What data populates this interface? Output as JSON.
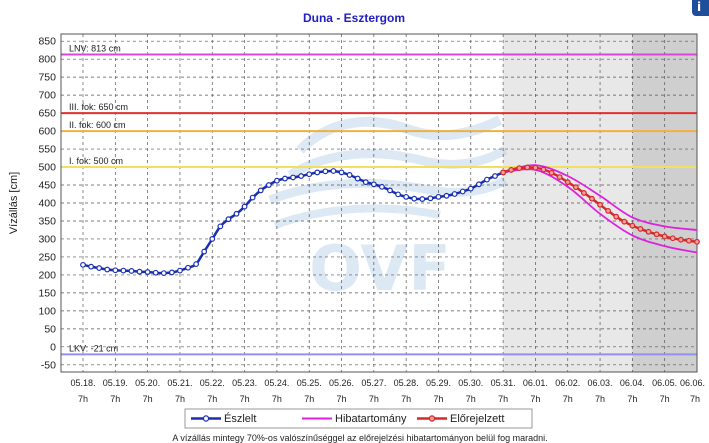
{
  "chart_data": {
    "type": "line",
    "title": "Duna - Esztergom",
    "ylabel": "Vízállás [cm]",
    "xlabel": "",
    "ylim": [
      -70,
      870
    ],
    "yticks": [
      -50,
      0,
      50,
      100,
      150,
      200,
      250,
      300,
      350,
      400,
      450,
      500,
      550,
      600,
      650,
      700,
      750,
      800,
      850
    ],
    "x_categories": [
      "05.18.",
      "05.19.",
      "05.20.",
      "05.21.",
      "05.22.",
      "05.23.",
      "05.24.",
      "05.25.",
      "05.26.",
      "05.27.",
      "05.28.",
      "05.29.",
      "05.30.",
      "05.31.",
      "06.01.",
      "06.02.",
      "06.03.",
      "06.04.",
      "06.05.",
      "06.06."
    ],
    "x_sublabel": "7h",
    "grid": true,
    "forecast_start_index": 13,
    "forecast_dark_start_index": 17,
    "reference_lines": [
      {
        "label": "LNV: 813 cm",
        "value": 813,
        "color": "#d946d9"
      },
      {
        "label": "III. fok: 650 cm",
        "value": 650,
        "color": "#e03030"
      },
      {
        "label": "II. fok: 600 cm",
        "value": 600,
        "color": "#f0b040"
      },
      {
        "label": "I. fok: 500 cm",
        "value": 500,
        "color": "#f0e060"
      },
      {
        "label": "LKV: -21 cm",
        "value": -21,
        "color": "#9090ee"
      }
    ],
    "observed": {
      "name": "Észlelt",
      "color": "#1a2fb0",
      "x": [
        0,
        0.25,
        0.5,
        0.75,
        1,
        1.25,
        1.5,
        1.75,
        2,
        2.25,
        2.5,
        2.75,
        3,
        3.25,
        3.5,
        3.75,
        4,
        4.25,
        4.5,
        4.75,
        5,
        5.25,
        5.5,
        5.75,
        6,
        6.25,
        6.5,
        6.75,
        7,
        7.25,
        7.5,
        7.75,
        8,
        8.25,
        8.5,
        8.75,
        9,
        9.25,
        9.5,
        9.75,
        10,
        10.25,
        10.5,
        10.75,
        11,
        11.25,
        11.5,
        11.75,
        12,
        12.25,
        12.5,
        12.75,
        13
      ],
      "y": [
        228,
        223,
        219,
        215,
        213,
        212,
        211,
        209,
        208,
        206,
        205,
        207,
        212,
        220,
        230,
        265,
        300,
        335,
        355,
        370,
        390,
        415,
        435,
        450,
        462,
        468,
        471,
        475,
        480,
        485,
        488,
        489,
        485,
        478,
        468,
        458,
        452,
        445,
        435,
        424,
        417,
        412,
        411,
        413,
        417,
        420,
        425,
        432,
        440,
        452,
        465,
        475,
        485
      ]
    },
    "forecast": {
      "name": "Előrejelzett",
      "color": "#d62a2a",
      "x": [
        13,
        13.25,
        13.5,
        13.75,
        14,
        14.25,
        14.5,
        14.75,
        15,
        15.25,
        15.5,
        15.75,
        16,
        16.25,
        16.5,
        16.75,
        17,
        17.25,
        17.5,
        17.75,
        18,
        18.25,
        18.5,
        18.75,
        19
      ],
      "y": [
        485,
        492,
        497,
        499,
        498,
        493,
        484,
        472,
        458,
        444,
        428,
        412,
        395,
        378,
        362,
        348,
        337,
        328,
        320,
        313,
        307,
        302,
        298,
        295,
        292
      ]
    },
    "error_band": {
      "name": "Hibatartomány",
      "color": "#dd22dd",
      "x": [
        13,
        14,
        15,
        16,
        17,
        18,
        19
      ],
      "upper": [
        487,
        505,
        475,
        420,
        360,
        335,
        325
      ],
      "lower": [
        485,
        492,
        445,
        370,
        310,
        280,
        262
      ]
    },
    "footnote": "A vízállás mintegy 70%-os valószínűséggel az előrejelzési hibatartományon belül fog maradni."
  }
}
